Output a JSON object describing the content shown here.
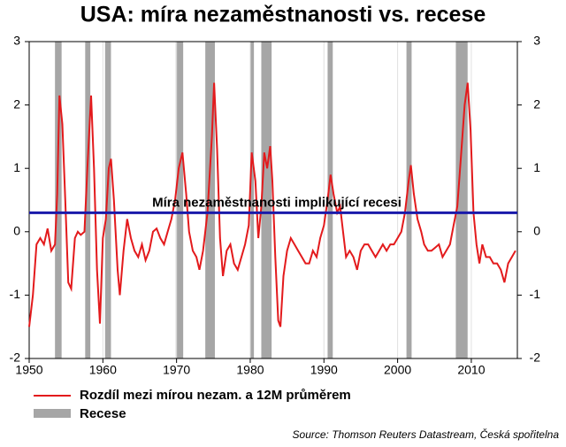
{
  "chart_data": {
    "type": "line",
    "title": "USA: míra nezaměstnanosti vs. recese",
    "source": "Source: Thomson Reuters Datastream, Česká spořitelna",
    "x": [
      1950.0,
      1950.5,
      1951.0,
      1951.5,
      1952.0,
      1952.5,
      1953.0,
      1953.5,
      1953.8,
      1954.1,
      1954.5,
      1954.9,
      1955.3,
      1955.7,
      1956.2,
      1956.6,
      1957.0,
      1957.5,
      1957.9,
      1958.4,
      1958.8,
      1959.2,
      1959.6,
      1960.0,
      1960.4,
      1960.8,
      1961.1,
      1961.5,
      1962.0,
      1962.3,
      1962.8,
      1963.3,
      1963.8,
      1964.3,
      1964.8,
      1965.3,
      1965.8,
      1966.3,
      1966.8,
      1967.3,
      1967.8,
      1968.3,
      1968.8,
      1969.3,
      1969.8,
      1970.3,
      1970.8,
      1971.3,
      1971.7,
      1972.2,
      1972.7,
      1973.1,
      1973.6,
      1974.2,
      1974.8,
      1975.1,
      1975.5,
      1975.9,
      1976.3,
      1976.8,
      1977.3,
      1977.8,
      1978.3,
      1978.8,
      1979.3,
      1979.8,
      1980.2,
      1980.7,
      1981.1,
      1981.5,
      1981.9,
      1982.3,
      1982.7,
      1983.0,
      1983.4,
      1983.8,
      1984.1,
      1984.5,
      1985.0,
      1985.5,
      1986.0,
      1986.5,
      1987.0,
      1987.5,
      1988.0,
      1988.5,
      1989.0,
      1989.5,
      1990.0,
      1990.5,
      1990.9,
      1991.3,
      1991.8,
      1992.2,
      1992.6,
      1993.0,
      1993.5,
      1994.0,
      1994.5,
      1995.0,
      1995.5,
      1996.0,
      1996.5,
      1997.0,
      1997.5,
      1998.0,
      1998.5,
      1999.0,
      1999.5,
      2000.0,
      2000.5,
      2001.0,
      2001.5,
      2001.8,
      2002.2,
      2002.7,
      2003.2,
      2003.6,
      2004.1,
      2004.6,
      2005.1,
      2005.6,
      2006.1,
      2006.6,
      2007.1,
      2007.6,
      2008.1,
      2008.6,
      2009.1,
      2009.5,
      2009.9,
      2010.3,
      2010.7,
      2011.1,
      2011.5,
      2012.0,
      2012.5,
      2013.0,
      2013.5,
      2014.0,
      2014.5,
      2015.0,
      2015.5,
      2016.0
    ],
    "series": [
      {
        "name": "Rozdíl mezi mírou nezam. a 12M průměrem",
        "color": "#e31a1c",
        "values": [
          -1.5,
          -1.0,
          -0.2,
          -0.1,
          -0.2,
          0.05,
          -0.3,
          -0.2,
          0.6,
          2.15,
          1.7,
          0.5,
          -0.8,
          -0.9,
          -0.1,
          0.0,
          -0.05,
          0.0,
          1.0,
          2.15,
          1.0,
          -0.6,
          -1.45,
          -0.1,
          0.2,
          1.0,
          1.15,
          0.5,
          -0.6,
          -1.0,
          -0.3,
          0.2,
          -0.1,
          -0.3,
          -0.4,
          -0.2,
          -0.45,
          -0.3,
          0.0,
          0.05,
          -0.1,
          -0.2,
          0.0,
          0.2,
          0.5,
          1.0,
          1.25,
          0.6,
          0.0,
          -0.3,
          -0.4,
          -0.6,
          -0.3,
          0.3,
          1.5,
          2.35,
          1.3,
          -0.1,
          -0.7,
          -0.3,
          -0.2,
          -0.5,
          -0.6,
          -0.4,
          -0.2,
          0.1,
          1.25,
          0.8,
          -0.1,
          0.4,
          1.25,
          1.0,
          1.35,
          0.8,
          -0.4,
          -1.4,
          -1.5,
          -0.7,
          -0.3,
          -0.1,
          -0.2,
          -0.3,
          -0.4,
          -0.5,
          -0.5,
          -0.3,
          -0.4,
          -0.1,
          0.1,
          0.5,
          0.9,
          0.6,
          0.3,
          0.4,
          0.0,
          -0.4,
          -0.3,
          -0.4,
          -0.6,
          -0.3,
          -0.2,
          -0.2,
          -0.3,
          -0.4,
          -0.3,
          -0.2,
          -0.3,
          -0.2,
          -0.2,
          -0.1,
          0.0,
          0.3,
          0.8,
          1.05,
          0.6,
          0.2,
          0.0,
          -0.2,
          -0.3,
          -0.3,
          -0.25,
          -0.2,
          -0.4,
          -0.3,
          -0.2,
          0.1,
          0.4,
          1.2,
          2.0,
          2.35,
          1.6,
          0.3,
          -0.2,
          -0.5,
          -0.2,
          -0.4,
          -0.4,
          -0.5,
          -0.5,
          -0.6,
          -0.8,
          -0.5,
          -0.4,
          -0.3
        ]
      }
    ],
    "recessions": {
      "name": "Recese",
      "color": "#a6a6a6",
      "periods": [
        [
          1953.5,
          1954.4
        ],
        [
          1957.6,
          1958.3
        ],
        [
          1960.3,
          1961.1
        ],
        [
          1969.9,
          1970.9
        ],
        [
          1973.9,
          1975.2
        ],
        [
          1980.0,
          1980.5
        ],
        [
          1981.5,
          1982.9
        ],
        [
          1990.5,
          1991.2
        ],
        [
          2001.2,
          2001.9
        ],
        [
          2007.9,
          2009.5
        ]
      ]
    },
    "threshold": {
      "label": "Míra nezaměstnanosti implikující recesi",
      "value": 0.3,
      "color": "#1a1aaa"
    },
    "xlim": [
      1950,
      2016.25
    ],
    "xticks": [
      1950,
      1960,
      1970,
      1980,
      1990,
      2000,
      2010
    ],
    "ylim": [
      -2,
      3
    ],
    "yticks": [
      -2,
      -1,
      0,
      1,
      2,
      3
    ],
    "y2lim": [
      -2,
      3
    ],
    "y2ticks": [
      -2,
      -1,
      0,
      1,
      2,
      3
    ],
    "grid": "x"
  }
}
